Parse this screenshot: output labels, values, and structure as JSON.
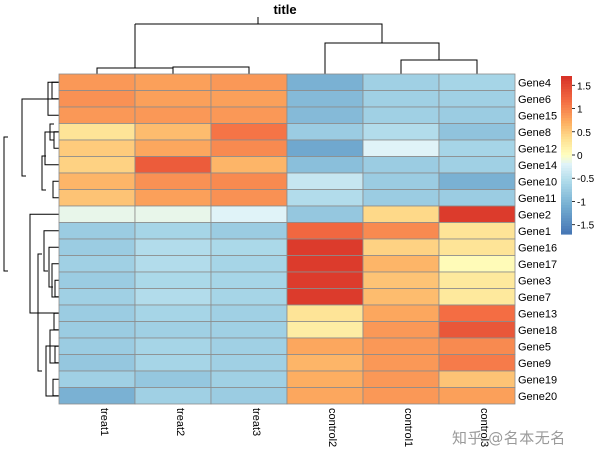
{
  "chart_data": {
    "type": "heatmap",
    "title": "title",
    "columns": [
      "treat1",
      "treat2",
      "treat3",
      "control2",
      "control1",
      "control3"
    ],
    "rows": [
      "Gene4",
      "Gene6",
      "Gene15",
      "Gene8",
      "Gene12",
      "Gene14",
      "Gene10",
      "Gene11",
      "Gene2",
      "Gene1",
      "Gene16",
      "Gene17",
      "Gene3",
      "Gene7",
      "Gene13",
      "Gene18",
      "Gene5",
      "Gene9",
      "Gene19",
      "Gene20"
    ],
    "values": [
      [
        0.85,
        0.8,
        0.85,
        -1.05,
        -0.7,
        -0.65
      ],
      [
        0.9,
        0.8,
        0.8,
        -0.95,
        -0.7,
        -0.7
      ],
      [
        0.85,
        0.85,
        0.85,
        -0.95,
        -0.7,
        -0.75
      ],
      [
        0.3,
        0.6,
        1.1,
        -0.75,
        -0.55,
        -0.85
      ],
      [
        0.5,
        0.75,
        0.95,
        -1.15,
        -0.2,
        -0.65
      ],
      [
        0.45,
        1.3,
        0.65,
        -0.9,
        -0.75,
        -0.7
      ],
      [
        0.65,
        0.9,
        0.95,
        -0.4,
        -0.75,
        -1.05
      ],
      [
        0.55,
        0.8,
        0.9,
        -0.55,
        -0.75,
        -0.75
      ],
      [
        -0.15,
        -0.15,
        -0.2,
        -0.8,
        0.4,
        1.6
      ],
      [
        -0.75,
        -0.65,
        -0.75,
        1.2,
        0.95,
        0.3
      ],
      [
        -0.75,
        -0.55,
        -0.6,
        1.6,
        0.45,
        0.3
      ],
      [
        -0.7,
        -0.55,
        -0.65,
        1.6,
        0.65,
        0.05
      ],
      [
        -0.75,
        -0.6,
        -0.65,
        1.6,
        0.55,
        0.25
      ],
      [
        -0.7,
        -0.55,
        -0.65,
        1.6,
        0.6,
        0.25
      ],
      [
        -0.75,
        -0.65,
        -0.7,
        0.3,
        0.75,
        1.15
      ],
      [
        -0.75,
        -0.7,
        -0.7,
        0.2,
        0.85,
        1.35
      ],
      [
        -0.75,
        -0.65,
        -0.7,
        0.75,
        0.85,
        0.95
      ],
      [
        -0.8,
        -0.65,
        -0.7,
        0.65,
        0.85,
        1.05
      ],
      [
        -0.7,
        -0.8,
        -0.7,
        0.7,
        0.85,
        0.55
      ],
      [
        -1.05,
        -0.7,
        -0.75,
        0.75,
        0.85,
        0.8
      ]
    ],
    "legend": {
      "ticks": [
        1.5,
        1,
        0.5,
        0,
        -0.5,
        -1,
        -1.5
      ],
      "tick_labels": [
        "1.5",
        "1",
        "0.5",
        "0",
        "-0.5",
        "-1",
        "-1.5"
      ],
      "range": [
        -1.7,
        1.7
      ],
      "placement": "right"
    },
    "color_scale": {
      "low": "#4575b4",
      "mid": "#ffffbf",
      "high": "#d73027",
      "name": "RdYlBu (reversed)"
    },
    "cell_border_color": "#8c8c8c"
  },
  "watermark": "知乎 @名本无名"
}
